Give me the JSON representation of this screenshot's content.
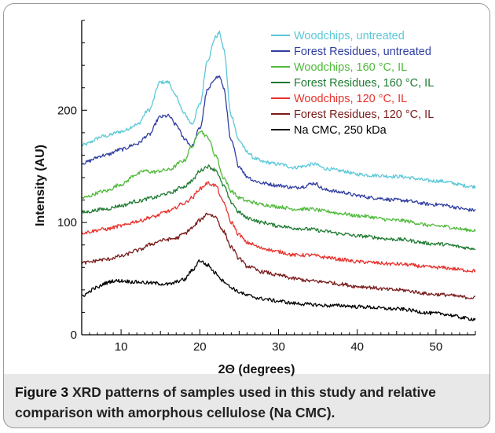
{
  "chart_data": {
    "type": "line",
    "xlabel": "2Θ (degrees)",
    "ylabel": "Intensity (AU)",
    "xlim": [
      5,
      55
    ],
    "ylim": [
      0,
      280
    ],
    "x_ticks": [
      10,
      20,
      30,
      40,
      50
    ],
    "y_ticks": [
      0,
      100,
      200
    ],
    "x_tick_labels": [
      "10",
      "20",
      "30",
      "40",
      "50"
    ],
    "y_tick_labels": [
      "0",
      "100",
      "200"
    ],
    "grid": false,
    "legend_position": "top-right",
    "series": [
      {
        "name": "Woodchips, untreated",
        "color": "#5bc8d8",
        "x": [
          5,
          8,
          10,
          12,
          13.5,
          15,
          16,
          17,
          18,
          19,
          20,
          21,
          22,
          22.5,
          23,
          24,
          25,
          26,
          27,
          28,
          30,
          32,
          33,
          34.5,
          36,
          38,
          40,
          42,
          45,
          50,
          55
        ],
        "y": [
          169,
          177,
          181,
          187,
          200,
          225,
          225,
          212,
          197,
          188,
          205,
          245,
          265,
          269,
          255,
          195,
          173,
          163,
          157,
          154,
          152,
          149,
          150,
          152,
          148,
          146,
          143,
          142,
          141,
          137,
          132
        ]
      },
      {
        "name": "Forest Residues, untreated",
        "color": "#2f3ea0",
        "x": [
          5,
          8,
          10,
          12,
          13.5,
          15,
          16,
          17,
          18,
          19,
          20,
          21,
          22,
          22.5,
          23,
          24,
          25,
          26,
          27,
          28,
          30,
          32,
          33,
          34.5,
          36,
          38,
          40,
          42,
          45,
          50,
          55
        ],
        "y": [
          153,
          160,
          165,
          170,
          178,
          194,
          195,
          187,
          175,
          168,
          184,
          218,
          229,
          230,
          220,
          172,
          150,
          141,
          137,
          135,
          133,
          131,
          132,
          135,
          129,
          127,
          124,
          122,
          120,
          116,
          111
        ]
      },
      {
        "name": "Woodchips, 160 °C, IL",
        "color": "#4fba3a",
        "x": [
          5,
          8,
          10,
          12,
          13,
          14,
          16,
          18,
          19,
          20,
          21,
          22,
          23,
          24,
          25,
          26,
          28,
          30,
          32,
          34,
          36,
          38,
          40,
          45,
          50,
          55
        ],
        "y": [
          122,
          128,
          134,
          143,
          146,
          145,
          147,
          155,
          168,
          182,
          176,
          160,
          140,
          128,
          122,
          119,
          116,
          114,
          112,
          112,
          110,
          108,
          106,
          102,
          97,
          93
        ]
      },
      {
        "name": "Forest Residues, 160 °C, IL",
        "color": "#1f7a32",
        "x": [
          5,
          8,
          10,
          12,
          14,
          16,
          18,
          19,
          20,
          21,
          22,
          23,
          24,
          25,
          26,
          28,
          30,
          32,
          34,
          36,
          38,
          40,
          45,
          50,
          55
        ],
        "y": [
          109,
          112,
          115,
          119,
          122,
          126,
          132,
          137,
          146,
          150,
          147,
          133,
          118,
          109,
          104,
          100,
          97,
          95,
          94,
          92,
          90,
          88,
          85,
          81,
          77
        ]
      },
      {
        "name": "Woodchips, 120 °C, IL",
        "color": "#e8322c",
        "x": [
          5,
          8,
          10,
          12,
          14,
          16,
          18,
          19,
          20,
          21,
          22,
          23,
          24,
          25,
          26,
          28,
          30,
          32,
          34,
          36,
          38,
          40,
          45,
          50,
          55
        ],
        "y": [
          91,
          94,
          97,
          101,
          105,
          110,
          117,
          122,
          130,
          135,
          133,
          118,
          100,
          89,
          82,
          77,
          74,
          71,
          71,
          69,
          67,
          65,
          63,
          60,
          57
        ]
      },
      {
        "name": "Forest Residues, 120 °C, IL",
        "color": "#7a1a1a",
        "x": [
          5,
          8,
          10,
          12,
          14,
          15,
          16,
          17,
          18,
          19,
          20,
          21,
          22,
          23,
          24,
          25,
          26,
          28,
          30,
          32,
          34,
          36,
          38,
          40,
          45,
          50,
          55
        ],
        "y": [
          64,
          67,
          70,
          75,
          81,
          84,
          85,
          86,
          90,
          95,
          102,
          108,
          105,
          92,
          78,
          68,
          61,
          56,
          53,
          50,
          48,
          47,
          45,
          43,
          40,
          36,
          33
        ]
      },
      {
        "name": "Na CMC, 250 kDa",
        "color": "#000000",
        "x": [
          5,
          7,
          8,
          9,
          10,
          12,
          14,
          16,
          18,
          19,
          20,
          21,
          22,
          23,
          24,
          25,
          26,
          28,
          30,
          32,
          34,
          36,
          38,
          40,
          45,
          50,
          55
        ],
        "y": [
          35,
          42,
          46,
          48,
          48,
          47,
          46,
          45,
          49,
          57,
          66,
          62,
          55,
          48,
          42,
          38,
          35,
          32,
          30,
          28,
          27,
          26,
          26,
          25,
          23,
          19,
          14
        ]
      }
    ]
  },
  "caption": {
    "label": "Figure 3",
    "text": "XRD patterns of samples used in this study and relative comparison with amorphous cellulose (Na CMC)."
  }
}
